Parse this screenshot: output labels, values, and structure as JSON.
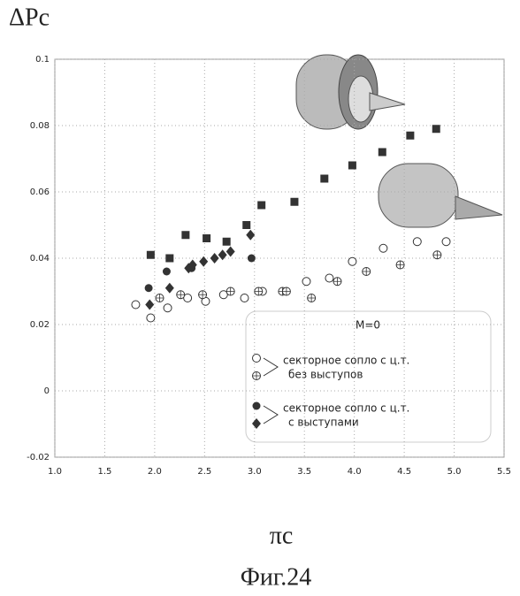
{
  "chart_data": {
    "type": "scatter",
    "y_label": "ΔPc",
    "x_label": "πc",
    "caption": "Фиг.24",
    "xlim": [
      1,
      5.5
    ],
    "xticks": [
      {
        "value": 1,
        "label": "1.0"
      },
      1.5,
      {
        "value": 2,
        "label": "2.0"
      },
      2.5,
      {
        "value": 3,
        "label": "3.0"
      },
      3.5,
      {
        "value": 4,
        "label": "4.0"
      },
      4.5,
      {
        "value": 5,
        "label": "5.0"
      },
      5.5
    ],
    "ylim": [
      -0.02,
      0.1
    ],
    "yticks": [
      -0.02,
      0,
      0.02,
      0.04,
      0.06,
      0.08,
      0.1
    ],
    "grid": true,
    "series": [
      {
        "marker": "circle-open",
        "color": "#333",
        "x": [
          1.81,
          1.96,
          2.13,
          2.33,
          2.51,
          2.69,
          2.9,
          3.08,
          3.52,
          3.75,
          3.98,
          4.29,
          4.63,
          4.92
        ],
        "values": [
          0.026,
          0.022,
          0.025,
          0.028,
          0.027,
          0.029,
          0.028,
          0.03,
          0.033,
          0.034,
          0.039,
          0.043,
          0.045,
          0.045
        ]
      },
      {
        "marker": "circle-cross",
        "color": "#333",
        "x": [
          2.05,
          2.26,
          2.48,
          2.76,
          3.04,
          3.28,
          3.32,
          3.57,
          3.83,
          4.12,
          4.46,
          4.83
        ],
        "values": [
          0.028,
          0.029,
          0.029,
          0.03,
          0.03,
          0.03,
          0.03,
          0.028,
          0.033,
          0.036,
          0.038,
          0.041
        ]
      },
      {
        "marker": "circle-filled",
        "color": "#333",
        "x": [
          1.94,
          2.12,
          2.37,
          2.97
        ],
        "values": [
          0.031,
          0.036,
          0.037,
          0.04
        ]
      },
      {
        "marker": "diamond",
        "color": "#333",
        "x": [
          1.95,
          2.15,
          2.34,
          2.38,
          2.49,
          2.6,
          2.68,
          2.76,
          2.96
        ],
        "values": [
          0.026,
          0.031,
          0.037,
          0.038,
          0.039,
          0.04,
          0.041,
          0.042,
          0.047
        ]
      },
      {
        "marker": "square",
        "color": "#333",
        "x": [
          1.96,
          2.15,
          2.31,
          2.52,
          2.72,
          2.92,
          3.07,
          3.4,
          3.7,
          3.98,
          4.28,
          4.56,
          4.82
        ],
        "values": [
          0.041,
          0.04,
          0.047,
          0.046,
          0.045,
          0.05,
          0.056,
          0.057,
          0.064,
          0.068,
          0.072,
          0.077,
          0.079
        ]
      }
    ],
    "legend": {
      "title": "M=0",
      "groups": [
        {
          "text": [
            "секторное сопло с ц.т.",
            "без выступов"
          ],
          "series": [
            0,
            1
          ]
        },
        {
          "text": [
            "секторное сопло с ц.т.",
            "с выступами"
          ],
          "series": [
            2,
            3
          ]
        }
      ]
    }
  }
}
